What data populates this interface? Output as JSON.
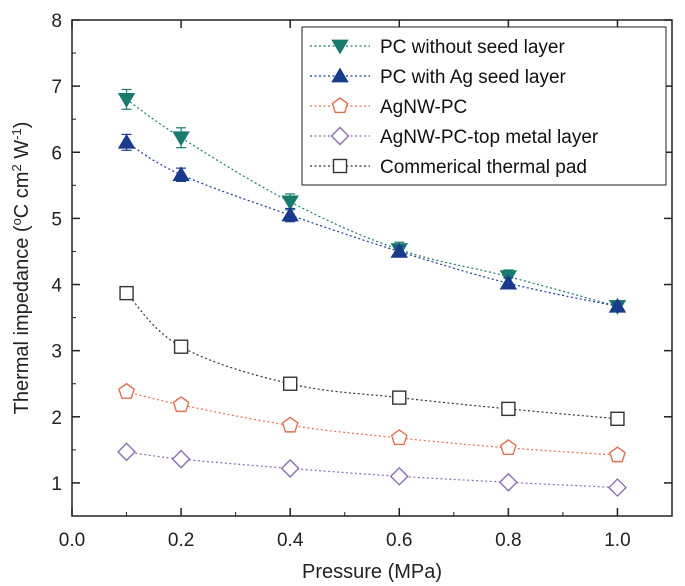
{
  "chart_data": {
    "type": "scatter",
    "xlabel": "Pressure (MPa)",
    "ylabel": "Thermal impedance (°C cm² W⁻¹)",
    "ylabel_parts": [
      "Thermal impedance (",
      "o",
      "C cm",
      "2",
      " W",
      "-1",
      ")"
    ],
    "xlim": [
      0.0,
      1.1
    ],
    "ylim": [
      0.5,
      8.0
    ],
    "xticks": [
      0.0,
      0.2,
      0.4,
      0.6,
      0.8,
      1.0
    ],
    "xtick_labels": [
      "0.0",
      "0.2",
      "0.4",
      "0.6",
      "0.8",
      "1.0"
    ],
    "yticks": [
      1,
      2,
      3,
      4,
      5,
      6,
      7,
      8
    ],
    "ytick_labels": [
      "1",
      "2",
      "3",
      "4",
      "5",
      "6",
      "7",
      "8"
    ],
    "grid": false,
    "legend_position": "top-right",
    "x": [
      0.1,
      0.2,
      0.4,
      0.6,
      0.8,
      1.0
    ],
    "series": [
      {
        "name": "PC without seed layer",
        "marker": "triangle-down",
        "color": "#1a7a6e",
        "filled": true,
        "values": [
          6.8,
          6.22,
          5.25,
          4.53,
          4.12,
          3.67
        ],
        "errors": [
          0.15,
          0.15,
          0.12,
          0.11,
          0.1,
          0.06
        ]
      },
      {
        "name": "PC with Ag seed layer",
        "marker": "triangle-up",
        "color": "#1a3a8c",
        "filled": true,
        "values": [
          6.15,
          5.66,
          5.05,
          4.5,
          4.02,
          3.67
        ],
        "errors": [
          0.12,
          0.1,
          0.1,
          0.08,
          0.08,
          0.05
        ]
      },
      {
        "name": "AgNW-PC",
        "marker": "pentagon",
        "color": "#e07050",
        "filled": false,
        "values": [
          2.38,
          2.18,
          1.87,
          1.68,
          1.53,
          1.42
        ],
        "errors": [
          0.08,
          0.08,
          0.07,
          0.07,
          0.06,
          0.06
        ]
      },
      {
        "name": "AgNW-PC-top metal layer",
        "marker": "diamond",
        "color": "#8a70b0",
        "filled": false,
        "values": [
          1.47,
          1.36,
          1.22,
          1.1,
          1.01,
          0.93
        ],
        "errors": [
          0.06,
          0.06,
          0.05,
          0.05,
          0.05,
          0.05
        ]
      },
      {
        "name": "Commerical thermal pad",
        "marker": "square",
        "color": "#333333",
        "filled": false,
        "values": [
          3.87,
          3.06,
          2.5,
          2.29,
          2.12,
          1.97
        ],
        "errors": [
          0.05,
          0.05,
          0.04,
          0.04,
          0.04,
          0.04
        ]
      }
    ]
  }
}
